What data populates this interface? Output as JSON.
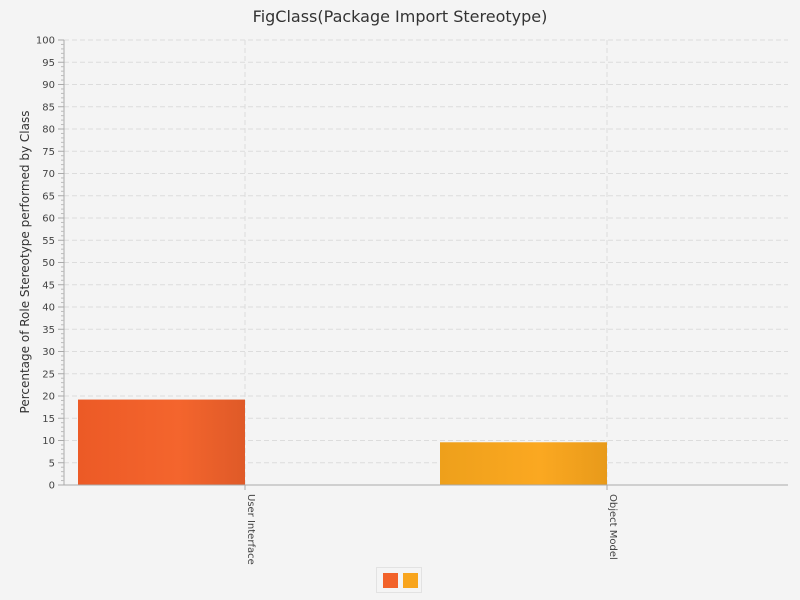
{
  "chart_data": {
    "type": "bar",
    "title": "FigClass(Package Import Stereotype)",
    "xlabel": "",
    "ylabel": "Percentage of Role Stereotype performed by Class",
    "categories": [
      "User Interface",
      "Object Model"
    ],
    "values": [
      19.2,
      9.6
    ],
    "colors": [
      "#f2622a",
      "#f8a51e"
    ],
    "ylim": [
      0,
      100
    ],
    "y_major_step": 5,
    "y_minor_step": 1,
    "grid": true,
    "legend": {
      "placement": "bottom-center",
      "entries": [
        "",
        ""
      ]
    }
  }
}
